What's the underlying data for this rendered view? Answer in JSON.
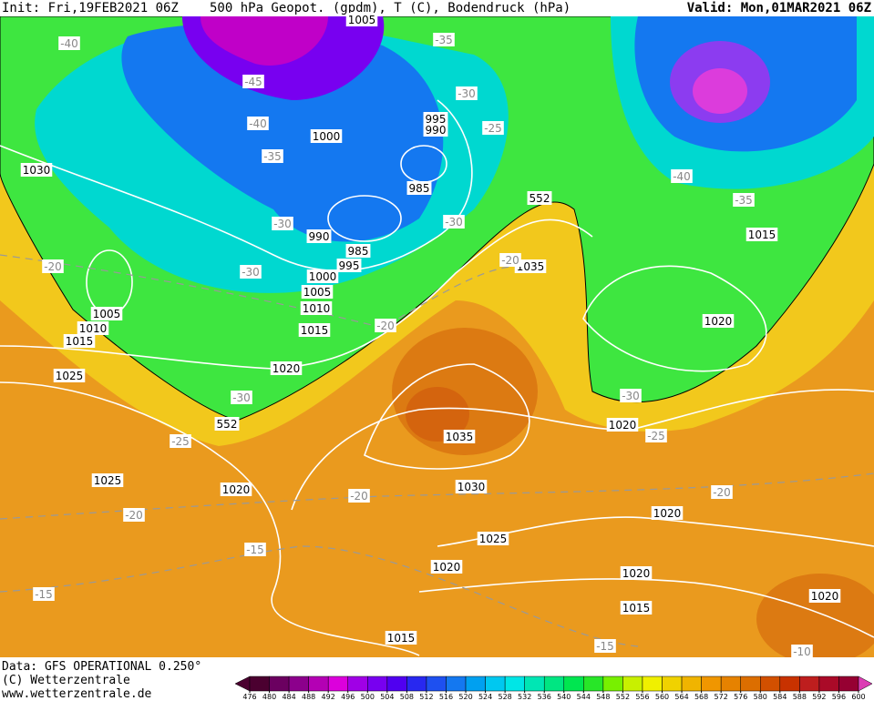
{
  "header": {
    "init": "Init: Fri,19FEB2021 06Z",
    "fields": "500 hPa Geopot. (gpdm), T (C), Bodendruck (hPa)",
    "valid": "Valid: Mon,01MAR2021 06Z"
  },
  "footer": {
    "data": "Data: GFS OPERATIONAL 0.250°",
    "copyright": "(C) Wetterzentrale",
    "url": "www.wetterzentrale.de"
  },
  "map": {
    "isobar_labels": [
      "1005",
      "1030",
      "1000",
      "995",
      "990",
      "985",
      "990",
      "985",
      "995",
      "1000",
      "1005",
      "1010",
      "1015",
      "1020",
      "1035",
      "1015",
      "1020",
      "1005",
      "1010",
      "1015",
      "1025",
      "1025",
      "1020",
      "1035",
      "1030",
      "1025",
      "1020",
      "1020",
      "1020",
      "1020",
      "1015",
      "1020",
      "1015",
      "552",
      "552"
    ],
    "temperature_labels": [
      "-40",
      "-45",
      "-40",
      "-35",
      "-30",
      "-35",
      "-30",
      "-25",
      "-30",
      "-30",
      "-20",
      "-20",
      "-20",
      "-30",
      "-25",
      "-30",
      "-25",
      "-40",
      "-35",
      "-20",
      "-20",
      "-15",
      "-15",
      "-20",
      "-15",
      "-10"
    ]
  },
  "colorbar": {
    "ticks": [
      476,
      480,
      484,
      488,
      492,
      496,
      500,
      504,
      508,
      512,
      516,
      520,
      524,
      528,
      532,
      536,
      540,
      544,
      548,
      552,
      556,
      560,
      564,
      568,
      572,
      576,
      580,
      584,
      588,
      592,
      596,
      600
    ],
    "colors": [
      "#4b0030",
      "#6b0060",
      "#8c008c",
      "#b400b4",
      "#dc00dc",
      "#a000e6",
      "#7800f0",
      "#5000f0",
      "#2828f0",
      "#1e50f0",
      "#1478f0",
      "#00a0f0",
      "#00c8f0",
      "#00e6e6",
      "#00e6b4",
      "#00e682",
      "#00e650",
      "#28e628",
      "#78f000",
      "#c8f000",
      "#f0f000",
      "#f0d200",
      "#f0b400",
      "#f09600",
      "#e68200",
      "#dc6e00",
      "#d25000",
      "#c83200",
      "#be1e1e",
      "#aa0a28",
      "#960032"
    ]
  }
}
